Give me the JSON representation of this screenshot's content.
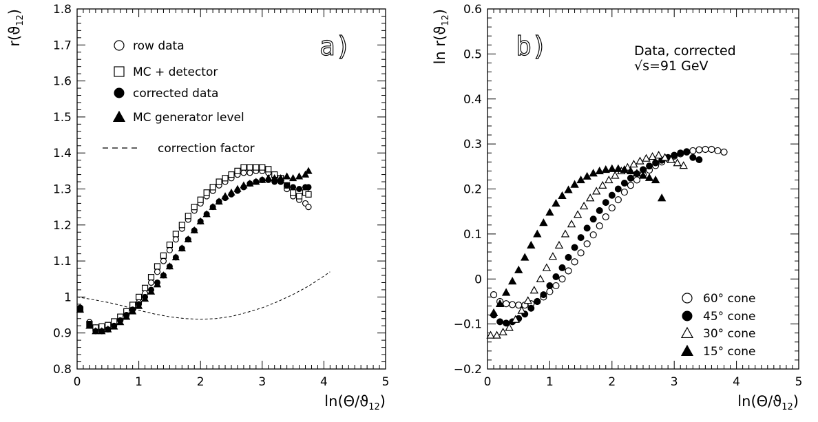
{
  "chart_data": [
    {
      "type": "scatter",
      "panel_tag": "a)",
      "xlabel": "ln(Θ/ϑ12)",
      "ylabel": "r(ϑ12)",
      "xlim": [
        0,
        5
      ],
      "ylim": [
        0.8,
        1.8
      ],
      "x_ticks": [
        "0",
        "1",
        "2",
        "3",
        "4",
        "5"
      ],
      "y_ticks": [
        "0.8",
        "0.9",
        "1",
        "1.1",
        "1.2",
        "1.3",
        "1.4",
        "1.5",
        "1.6",
        "1.7",
        "1.8"
      ],
      "legend_placement": "top-left",
      "series": [
        {
          "name": "row data",
          "marker": "open-circle",
          "x": [
            0.05,
            0.2,
            0.3,
            0.4,
            0.5,
            0.6,
            0.7,
            0.8,
            0.9,
            1.0,
            1.1,
            1.2,
            1.3,
            1.4,
            1.5,
            1.6,
            1.7,
            1.8,
            1.9,
            2.0,
            2.1,
            2.2,
            2.3,
            2.4,
            2.5,
            2.6,
            2.7,
            2.8,
            2.9,
            3.0,
            3.1,
            3.2,
            3.3,
            3.4,
            3.5,
            3.6,
            3.7,
            3.75
          ],
          "y": [
            0.97,
            0.93,
            0.915,
            0.915,
            0.92,
            0.925,
            0.935,
            0.95,
            0.965,
            0.985,
            1.01,
            1.04,
            1.07,
            1.1,
            1.13,
            1.16,
            1.19,
            1.215,
            1.24,
            1.26,
            1.28,
            1.295,
            1.31,
            1.32,
            1.33,
            1.34,
            1.345,
            1.345,
            1.35,
            1.35,
            1.345,
            1.335,
            1.32,
            1.3,
            1.28,
            1.27,
            1.26,
            1.25
          ]
        },
        {
          "name": "MC + detector",
          "marker": "open-square",
          "x": [
            0.05,
            0.2,
            0.3,
            0.4,
            0.5,
            0.6,
            0.7,
            0.8,
            0.9,
            1.0,
            1.1,
            1.2,
            1.3,
            1.4,
            1.5,
            1.6,
            1.7,
            1.8,
            1.9,
            2.0,
            2.1,
            2.2,
            2.3,
            2.4,
            2.5,
            2.6,
            2.7,
            2.8,
            2.9,
            3.0,
            3.1,
            3.2,
            3.3,
            3.4,
            3.5,
            3.6,
            3.7,
            3.75
          ],
          "y": [
            0.965,
            0.925,
            0.915,
            0.918,
            0.922,
            0.932,
            0.945,
            0.96,
            0.978,
            1.0,
            1.025,
            1.055,
            1.085,
            1.115,
            1.145,
            1.175,
            1.2,
            1.225,
            1.25,
            1.27,
            1.29,
            1.305,
            1.32,
            1.33,
            1.34,
            1.35,
            1.36,
            1.36,
            1.36,
            1.36,
            1.355,
            1.34,
            1.33,
            1.31,
            1.29,
            1.28,
            1.29,
            1.285
          ]
        },
        {
          "name": "corrected data",
          "marker": "filled-circle",
          "x": [
            0.05,
            0.2,
            0.3,
            0.4,
            0.5,
            0.6,
            0.7,
            0.8,
            0.9,
            1.0,
            1.1,
            1.2,
            1.3,
            1.4,
            1.5,
            1.6,
            1.7,
            1.8,
            1.9,
            2.0,
            2.1,
            2.2,
            2.3,
            2.4,
            2.5,
            2.6,
            2.7,
            2.8,
            2.9,
            3.0,
            3.1,
            3.2,
            3.3,
            3.4,
            3.5,
            3.6,
            3.7,
            3.75
          ],
          "y": [
            0.97,
            0.925,
            0.905,
            0.905,
            0.91,
            0.92,
            0.935,
            0.95,
            0.965,
            0.98,
            1.0,
            1.02,
            1.04,
            1.06,
            1.085,
            1.11,
            1.135,
            1.16,
            1.185,
            1.21,
            1.23,
            1.25,
            1.265,
            1.275,
            1.285,
            1.295,
            1.305,
            1.315,
            1.32,
            1.325,
            1.325,
            1.32,
            1.32,
            1.31,
            1.305,
            1.3,
            1.305,
            1.305
          ]
        },
        {
          "name": "MC generator level",
          "marker": "filled-triangle",
          "x": [
            0.05,
            0.2,
            0.3,
            0.4,
            0.5,
            0.6,
            0.7,
            0.8,
            0.9,
            1.0,
            1.1,
            1.2,
            1.3,
            1.4,
            1.5,
            1.6,
            1.7,
            1.8,
            1.9,
            2.0,
            2.1,
            2.2,
            2.3,
            2.4,
            2.5,
            2.6,
            2.7,
            2.8,
            2.9,
            3.0,
            3.1,
            3.2,
            3.3,
            3.4,
            3.5,
            3.6,
            3.7,
            3.75
          ],
          "y": [
            0.965,
            0.92,
            0.905,
            0.905,
            0.91,
            0.918,
            0.93,
            0.945,
            0.96,
            0.975,
            0.995,
            1.015,
            1.035,
            1.06,
            1.085,
            1.11,
            1.135,
            1.16,
            1.185,
            1.21,
            1.23,
            1.25,
            1.265,
            1.28,
            1.29,
            1.3,
            1.31,
            1.315,
            1.32,
            1.325,
            1.33,
            1.33,
            1.33,
            1.335,
            1.33,
            1.335,
            1.34,
            1.35
          ]
        },
        {
          "name": "correction factor",
          "marker": "dashed-line",
          "x": [
            0,
            0.25,
            0.5,
            0.75,
            1.0,
            1.25,
            1.5,
            1.75,
            2.0,
            2.25,
            2.5,
            2.75,
            3.0,
            3.25,
            3.5,
            3.75,
            4.0,
            4.1
          ],
          "y": [
            1.0,
            0.993,
            0.985,
            0.975,
            0.963,
            0.953,
            0.945,
            0.94,
            0.938,
            0.94,
            0.946,
            0.957,
            0.97,
            0.987,
            1.007,
            1.03,
            1.058,
            1.07
          ]
        }
      ]
    },
    {
      "type": "scatter",
      "panel_tag": "b)",
      "annotation_lines": [
        "Data, corrected",
        "√s=91 GeV"
      ],
      "xlabel": "ln(Θ/ϑ12)",
      "ylabel": "ln r(ϑ12)",
      "xlim": [
        0,
        5
      ],
      "ylim": [
        -0.2,
        0.6
      ],
      "x_ticks": [
        "0",
        "1",
        "2",
        "3",
        "4",
        "5"
      ],
      "y_ticks": [
        "-0.2",
        "-0.1",
        "0",
        "0.1",
        "0.2",
        "0.3",
        "0.4",
        "0.5",
        "0.6"
      ],
      "legend_placement": "bottom-right",
      "series": [
        {
          "name": "60° cone",
          "marker": "open-circle",
          "x": [
            0.1,
            0.2,
            0.3,
            0.4,
            0.5,
            0.6,
            0.7,
            0.8,
            0.9,
            1.0,
            1.1,
            1.2,
            1.3,
            1.4,
            1.5,
            1.6,
            1.7,
            1.8,
            1.9,
            2.0,
            2.1,
            2.2,
            2.3,
            2.4,
            2.5,
            2.6,
            2.7,
            2.8,
            2.9,
            3.0,
            3.1,
            3.2,
            3.3,
            3.4,
            3.5,
            3.6,
            3.7,
            3.8
          ],
          "y": [
            -0.035,
            -0.05,
            -0.055,
            -0.057,
            -0.058,
            -0.058,
            -0.055,
            -0.05,
            -0.04,
            -0.028,
            -0.015,
            0.0,
            0.018,
            0.038,
            0.058,
            0.078,
            0.098,
            0.118,
            0.138,
            0.158,
            0.176,
            0.193,
            0.208,
            0.22,
            0.232,
            0.242,
            0.252,
            0.26,
            0.267,
            0.273,
            0.278,
            0.282,
            0.285,
            0.287,
            0.288,
            0.288,
            0.285,
            0.282
          ]
        },
        {
          "name": "45° cone",
          "marker": "filled-circle",
          "x": [
            0.1,
            0.2,
            0.3,
            0.4,
            0.5,
            0.6,
            0.7,
            0.8,
            0.9,
            1.0,
            1.1,
            1.2,
            1.3,
            1.4,
            1.5,
            1.6,
            1.7,
            1.8,
            1.9,
            2.0,
            2.1,
            2.2,
            2.3,
            2.4,
            2.5,
            2.6,
            2.7,
            2.8,
            2.9,
            3.0,
            3.1,
            3.2,
            3.3,
            3.4
          ],
          "y": [
            -0.08,
            -0.095,
            -0.098,
            -0.095,
            -0.088,
            -0.078,
            -0.065,
            -0.05,
            -0.035,
            -0.015,
            0.005,
            0.025,
            0.048,
            0.07,
            0.092,
            0.113,
            0.133,
            0.152,
            0.17,
            0.186,
            0.2,
            0.213,
            0.224,
            0.234,
            0.243,
            0.251,
            0.258,
            0.264,
            0.27,
            0.275,
            0.28,
            0.283,
            0.27,
            0.265
          ]
        },
        {
          "name": "30° cone",
          "marker": "open-triangle",
          "x": [
            0.05,
            0.15,
            0.25,
            0.35,
            0.45,
            0.55,
            0.65,
            0.75,
            0.85,
            0.95,
            1.05,
            1.15,
            1.25,
            1.35,
            1.45,
            1.55,
            1.65,
            1.75,
            1.85,
            1.95,
            2.05,
            2.15,
            2.25,
            2.35,
            2.45,
            2.55,
            2.65,
            2.75,
            2.85,
            2.95,
            3.05,
            3.15
          ],
          "y": [
            -0.125,
            -0.125,
            -0.118,
            -0.108,
            -0.09,
            -0.07,
            -0.048,
            -0.025,
            0.0,
            0.025,
            0.05,
            0.075,
            0.1,
            0.122,
            0.143,
            0.162,
            0.18,
            0.195,
            0.208,
            0.22,
            0.23,
            0.24,
            0.248,
            0.255,
            0.262,
            0.268,
            0.272,
            0.275,
            0.27,
            0.265,
            0.258,
            0.252
          ]
        },
        {
          "name": "15° cone",
          "marker": "filled-triangle",
          "x": [
            0.1,
            0.2,
            0.3,
            0.4,
            0.5,
            0.6,
            0.7,
            0.8,
            0.9,
            1.0,
            1.1,
            1.2,
            1.3,
            1.4,
            1.5,
            1.6,
            1.7,
            1.8,
            1.9,
            2.0,
            2.1,
            2.2,
            2.3,
            2.4,
            2.5,
            2.6,
            2.7,
            2.8
          ],
          "y": [
            -0.075,
            -0.055,
            -0.03,
            -0.005,
            0.02,
            0.048,
            0.075,
            0.1,
            0.125,
            0.148,
            0.168,
            0.185,
            0.198,
            0.21,
            0.22,
            0.228,
            0.235,
            0.24,
            0.243,
            0.245,
            0.245,
            0.243,
            0.24,
            0.235,
            0.23,
            0.225,
            0.22,
            0.18
          ]
        }
      ]
    }
  ]
}
